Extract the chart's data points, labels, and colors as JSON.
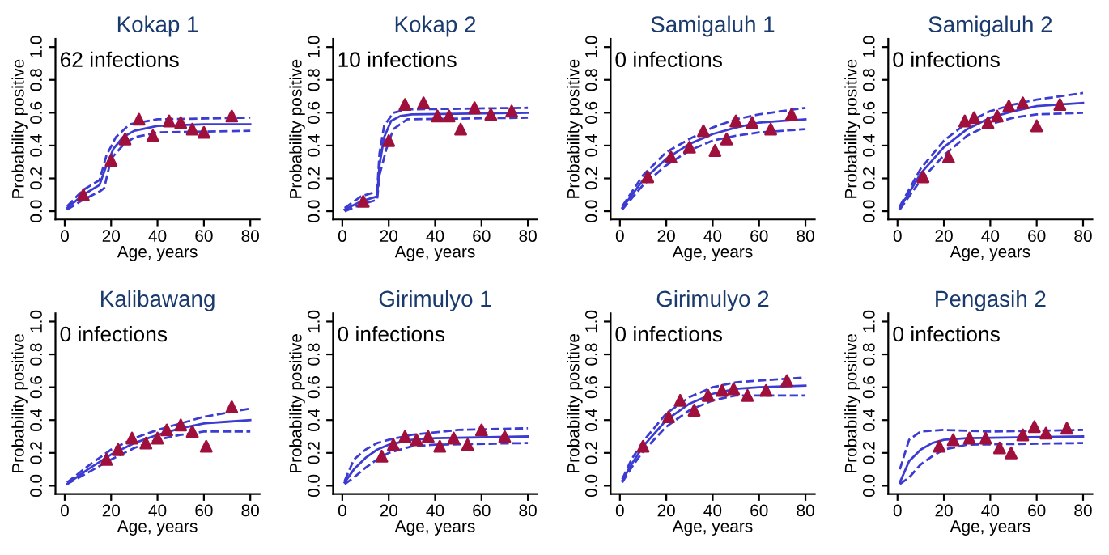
{
  "chart_data": [
    {
      "type": "line",
      "title": "Kokap 1",
      "xlabel": "Age, years",
      "ylabel": "Probability positive",
      "annotations": [
        "62 infections"
      ],
      "xlim": [
        -4,
        84
      ],
      "ylim": [
        -0.05,
        1.05
      ],
      "xticks": [
        0,
        20,
        40,
        60,
        80
      ],
      "yticks": [
        {
          "value": 0,
          "label": "0.0"
        },
        {
          "value": 0.2,
          "label": "0.2"
        },
        {
          "value": 0.4,
          "label": "0.4"
        },
        {
          "value": 0.6,
          "label": "0.6"
        },
        {
          "value": 0.8,
          "label": "0.8"
        },
        {
          "value": 1,
          "label": "1.0"
        }
      ],
      "grid": false,
      "series": [
        {
          "type": "line",
          "line_style": "solid",
          "color": "#3c3cd2",
          "x": [
            1,
            8,
            15,
            18,
            21,
            25,
            30,
            40,
            60,
            80
          ],
          "values": [
            0.02,
            0.1,
            0.16,
            0.28,
            0.38,
            0.45,
            0.49,
            0.52,
            0.53,
            0.53
          ]
        },
        {
          "type": "line",
          "line_style": "dashed",
          "color": "#3c3cd2",
          "x": [
            1,
            8,
            15,
            17,
            20,
            25,
            30,
            40,
            80
          ],
          "values": [
            0.01,
            0.07,
            0.12,
            0.14,
            0.32,
            0.4,
            0.45,
            0.48,
            0.49
          ]
        },
        {
          "type": "line",
          "line_style": "dashed",
          "color": "#3c3cd2",
          "x": [
            1,
            8,
            15,
            18,
            22,
            28,
            40,
            80
          ],
          "values": [
            0.03,
            0.13,
            0.19,
            0.34,
            0.45,
            0.53,
            0.56,
            0.57
          ]
        },
        {
          "type": "scatter",
          "marker": "triangle",
          "color": "#a0103c",
          "x": [
            8,
            20,
            26,
            32,
            38,
            45,
            50,
            55,
            60,
            72
          ],
          "values": [
            0.1,
            0.31,
            0.44,
            0.56,
            0.46,
            0.55,
            0.54,
            0.5,
            0.48,
            0.58
          ]
        }
      ]
    },
    {
      "type": "line",
      "title": "Kokap 2",
      "xlabel": "Age, years",
      "ylabel": "Probability positive",
      "annotations": [
        "10 infections"
      ],
      "xlim": [
        -4,
        84
      ],
      "ylim": [
        -0.05,
        1.05
      ],
      "xticks": [
        0,
        20,
        40,
        60,
        80
      ],
      "yticks": [
        {
          "value": 0,
          "label": "0.0"
        },
        {
          "value": 0.2,
          "label": "0.2"
        },
        {
          "value": 0.4,
          "label": "0.4"
        },
        {
          "value": 0.6,
          "label": "0.6"
        },
        {
          "value": 0.8,
          "label": "0.8"
        },
        {
          "value": 1,
          "label": "1.0"
        }
      ],
      "grid": false,
      "series": [
        {
          "type": "line",
          "line_style": "solid",
          "color": "#3c3cd2",
          "x": [
            1,
            8,
            15,
            16,
            18,
            21,
            25,
            30,
            80
          ],
          "values": [
            0.01,
            0.06,
            0.09,
            0.28,
            0.45,
            0.55,
            0.58,
            0.59,
            0.6
          ]
        },
        {
          "type": "line",
          "line_style": "dashed",
          "color": "#3c3cd2",
          "x": [
            1,
            8,
            15,
            16,
            19,
            22,
            28,
            80
          ],
          "values": [
            0.0,
            0.04,
            0.07,
            0.22,
            0.38,
            0.5,
            0.56,
            0.57
          ]
        },
        {
          "type": "line",
          "line_style": "dashed",
          "color": "#3c3cd2",
          "x": [
            1,
            8,
            15,
            16,
            18,
            22,
            28,
            80
          ],
          "values": [
            0.02,
            0.09,
            0.12,
            0.35,
            0.52,
            0.6,
            0.62,
            0.63
          ]
        },
        {
          "type": "scatter",
          "marker": "triangle",
          "color": "#a0103c",
          "x": [
            9,
            20,
            27,
            35,
            41,
            46,
            51,
            57,
            64,
            73
          ],
          "values": [
            0.06,
            0.43,
            0.65,
            0.66,
            0.58,
            0.58,
            0.5,
            0.63,
            0.59,
            0.61
          ]
        }
      ]
    },
    {
      "type": "line",
      "title": "Samigaluh 1",
      "xlabel": "Age, years",
      "ylabel": "Probability positive",
      "annotations": [
        "0 infections"
      ],
      "xlim": [
        -4,
        84
      ],
      "ylim": [
        -0.05,
        1.05
      ],
      "xticks": [
        0,
        20,
        40,
        60,
        80
      ],
      "yticks": [
        {
          "value": 0,
          "label": "0.0"
        },
        {
          "value": 0.2,
          "label": "0.2"
        },
        {
          "value": 0.4,
          "label": "0.4"
        },
        {
          "value": 0.6,
          "label": "0.6"
        },
        {
          "value": 0.8,
          "label": "0.8"
        },
        {
          "value": 1,
          "label": "1.0"
        }
      ],
      "grid": false,
      "series": [
        {
          "type": "line",
          "line_style": "solid",
          "color": "#3c3cd2",
          "x": [
            1,
            10,
            20,
            30,
            40,
            50,
            60,
            70,
            80
          ],
          "values": [
            0.02,
            0.19,
            0.32,
            0.41,
            0.47,
            0.51,
            0.54,
            0.55,
            0.56
          ]
        },
        {
          "type": "line",
          "line_style": "dashed",
          "color": "#3c3cd2",
          "x": [
            1,
            10,
            20,
            30,
            40,
            50,
            60,
            80
          ],
          "values": [
            0.01,
            0.16,
            0.28,
            0.37,
            0.43,
            0.46,
            0.48,
            0.5
          ]
        },
        {
          "type": "line",
          "line_style": "dashed",
          "color": "#3c3cd2",
          "x": [
            1,
            10,
            20,
            30,
            40,
            50,
            60,
            80
          ],
          "values": [
            0.03,
            0.22,
            0.36,
            0.44,
            0.51,
            0.56,
            0.59,
            0.63
          ]
        },
        {
          "type": "scatter",
          "marker": "triangle",
          "color": "#a0103c",
          "x": [
            12,
            22,
            30,
            36,
            41,
            46,
            50,
            57,
            65,
            74
          ],
          "values": [
            0.21,
            0.33,
            0.39,
            0.49,
            0.37,
            0.44,
            0.55,
            0.54,
            0.5,
            0.59
          ]
        }
      ]
    },
    {
      "type": "line",
      "title": "Samigaluh 2",
      "xlabel": "Age, years",
      "ylabel": "Probability positive",
      "annotations": [
        "0 infections"
      ],
      "xlim": [
        -4,
        84
      ],
      "ylim": [
        -0.05,
        1.05
      ],
      "xticks": [
        0,
        20,
        40,
        60,
        80
      ],
      "yticks": [
        {
          "value": 0,
          "label": "0.0"
        },
        {
          "value": 0.2,
          "label": "0.2"
        },
        {
          "value": 0.4,
          "label": "0.4"
        },
        {
          "value": 0.6,
          "label": "0.6"
        },
        {
          "value": 0.8,
          "label": "0.8"
        },
        {
          "value": 1,
          "label": "1.0"
        }
      ],
      "grid": false,
      "series": [
        {
          "type": "line",
          "line_style": "solid",
          "color": "#3c3cd2",
          "x": [
            1,
            10,
            20,
            30,
            40,
            50,
            60,
            70,
            80
          ],
          "values": [
            0.02,
            0.23,
            0.39,
            0.5,
            0.57,
            0.61,
            0.64,
            0.65,
            0.66
          ]
        },
        {
          "type": "line",
          "line_style": "dashed",
          "color": "#3c3cd2",
          "x": [
            1,
            10,
            20,
            30,
            40,
            50,
            60,
            80
          ],
          "values": [
            0.01,
            0.19,
            0.34,
            0.46,
            0.53,
            0.57,
            0.59,
            0.6
          ]
        },
        {
          "type": "line",
          "line_style": "dashed",
          "color": "#3c3cd2",
          "x": [
            1,
            10,
            20,
            30,
            40,
            50,
            60,
            80
          ],
          "values": [
            0.03,
            0.26,
            0.43,
            0.54,
            0.61,
            0.65,
            0.68,
            0.72
          ]
        },
        {
          "type": "scatter",
          "marker": "triangle",
          "color": "#a0103c",
          "x": [
            11,
            22,
            29,
            33,
            39,
            43,
            48,
            54,
            60,
            70
          ],
          "values": [
            0.21,
            0.33,
            0.55,
            0.57,
            0.54,
            0.58,
            0.64,
            0.66,
            0.52,
            0.65
          ]
        }
      ]
    },
    {
      "type": "line",
      "title": "Kalibawang",
      "xlabel": "Age, years",
      "ylabel": "Probability positive",
      "annotations": [
        "0 infections"
      ],
      "xlim": [
        -4,
        84
      ],
      "ylim": [
        -0.05,
        1.05
      ],
      "xticks": [
        0,
        20,
        40,
        60,
        80
      ],
      "yticks": [
        {
          "value": 0,
          "label": "0.0"
        },
        {
          "value": 0.2,
          "label": "0.2"
        },
        {
          "value": 0.4,
          "label": "0.4"
        },
        {
          "value": 0.6,
          "label": "0.6"
        },
        {
          "value": 0.8,
          "label": "0.8"
        },
        {
          "value": 1,
          "label": "1.0"
        }
      ],
      "grid": false,
      "series": [
        {
          "type": "line",
          "line_style": "solid",
          "color": "#3c3cd2",
          "x": [
            1,
            10,
            20,
            30,
            40,
            50,
            60,
            70,
            80
          ],
          "values": [
            0.01,
            0.1,
            0.19,
            0.26,
            0.31,
            0.35,
            0.38,
            0.39,
            0.4
          ]
        },
        {
          "type": "line",
          "line_style": "dashed",
          "color": "#3c3cd2",
          "x": [
            1,
            10,
            20,
            30,
            40,
            50,
            60,
            80
          ],
          "values": [
            0.01,
            0.08,
            0.16,
            0.23,
            0.28,
            0.31,
            0.33,
            0.33
          ]
        },
        {
          "type": "line",
          "line_style": "dashed",
          "color": "#3c3cd2",
          "x": [
            1,
            10,
            20,
            30,
            40,
            50,
            60,
            80
          ],
          "values": [
            0.02,
            0.12,
            0.22,
            0.29,
            0.34,
            0.38,
            0.42,
            0.47
          ]
        },
        {
          "type": "scatter",
          "marker": "triangle",
          "color": "#a0103c",
          "x": [
            18,
            23,
            29,
            35,
            40,
            44,
            50,
            55,
            61,
            72
          ],
          "values": [
            0.16,
            0.22,
            0.29,
            0.26,
            0.29,
            0.34,
            0.37,
            0.33,
            0.24,
            0.48
          ]
        }
      ]
    },
    {
      "type": "line",
      "title": "Girimulyo 1",
      "xlabel": "Age, years",
      "ylabel": "Probability positive",
      "annotations": [
        "0 infections"
      ],
      "xlim": [
        -4,
        84
      ],
      "ylim": [
        -0.05,
        1.05
      ],
      "xticks": [
        0,
        20,
        40,
        60,
        80
      ],
      "yticks": [
        {
          "value": 0,
          "label": "0.0"
        },
        {
          "value": 0.2,
          "label": "0.2"
        },
        {
          "value": 0.4,
          "label": "0.4"
        },
        {
          "value": 0.6,
          "label": "0.6"
        },
        {
          "value": 0.8,
          "label": "0.8"
        },
        {
          "value": 1,
          "label": "1.0"
        }
      ],
      "grid": false,
      "series": [
        {
          "type": "line",
          "line_style": "solid",
          "color": "#3c3cd2",
          "x": [
            1,
            5,
            10,
            15,
            20,
            30,
            40,
            80
          ],
          "values": [
            0.02,
            0.1,
            0.17,
            0.22,
            0.25,
            0.28,
            0.29,
            0.3
          ]
        },
        {
          "type": "line",
          "line_style": "dashed",
          "color": "#3c3cd2",
          "x": [
            1,
            5,
            10,
            15,
            20,
            30,
            40,
            80
          ],
          "values": [
            0.01,
            0.05,
            0.11,
            0.16,
            0.2,
            0.24,
            0.25,
            0.26
          ]
        },
        {
          "type": "line",
          "line_style": "dashed",
          "color": "#3c3cd2",
          "x": [
            1,
            5,
            10,
            15,
            20,
            30,
            50,
            80
          ],
          "values": [
            0.03,
            0.16,
            0.22,
            0.26,
            0.28,
            0.31,
            0.34,
            0.35
          ]
        },
        {
          "type": "scatter",
          "marker": "triangle",
          "color": "#a0103c",
          "x": [
            17,
            22,
            27,
            32,
            37,
            42,
            48,
            54,
            60,
            70
          ],
          "values": [
            0.18,
            0.25,
            0.3,
            0.28,
            0.3,
            0.24,
            0.29,
            0.25,
            0.34,
            0.3
          ]
        }
      ]
    },
    {
      "type": "line",
      "title": "Girimulyo 2",
      "xlabel": "Age, years",
      "ylabel": "Probability positive",
      "annotations": [
        "0 infections"
      ],
      "xlim": [
        -4,
        84
      ],
      "ylim": [
        -0.05,
        1.05
      ],
      "xticks": [
        0,
        20,
        40,
        60,
        80
      ],
      "yticks": [
        {
          "value": 0,
          "label": "0.0"
        },
        {
          "value": 0.2,
          "label": "0.2"
        },
        {
          "value": 0.4,
          "label": "0.4"
        },
        {
          "value": 0.6,
          "label": "0.6"
        },
        {
          "value": 0.8,
          "label": "0.8"
        },
        {
          "value": 1,
          "label": "1.0"
        }
      ],
      "grid": false,
      "series": [
        {
          "type": "line",
          "line_style": "solid",
          "color": "#3c3cd2",
          "x": [
            1,
            5,
            10,
            20,
            30,
            40,
            50,
            60,
            80
          ],
          "values": [
            0.03,
            0.13,
            0.24,
            0.4,
            0.5,
            0.56,
            0.59,
            0.6,
            0.61
          ]
        },
        {
          "type": "line",
          "line_style": "dashed",
          "color": "#3c3cd2",
          "x": [
            1,
            5,
            10,
            20,
            30,
            40,
            50,
            80
          ],
          "values": [
            0.02,
            0.11,
            0.21,
            0.36,
            0.46,
            0.52,
            0.55,
            0.55
          ]
        },
        {
          "type": "line",
          "line_style": "dashed",
          "color": "#3c3cd2",
          "x": [
            1,
            5,
            10,
            20,
            30,
            40,
            50,
            80
          ],
          "values": [
            0.04,
            0.16,
            0.27,
            0.44,
            0.54,
            0.6,
            0.63,
            0.66
          ]
        },
        {
          "type": "scatter",
          "marker": "triangle",
          "color": "#a0103c",
          "x": [
            10,
            21,
            26,
            32,
            38,
            44,
            49,
            55,
            63,
            72
          ],
          "values": [
            0.24,
            0.42,
            0.52,
            0.46,
            0.55,
            0.58,
            0.59,
            0.55,
            0.58,
            0.64
          ]
        }
      ]
    },
    {
      "type": "line",
      "title": "Pengasih 2",
      "xlabel": "Age, years",
      "ylabel": "Probability positive",
      "annotations": [
        "0 infections"
      ],
      "xlim": [
        -4,
        84
      ],
      "ylim": [
        -0.05,
        1.05
      ],
      "xticks": [
        0,
        20,
        40,
        60,
        80
      ],
      "yticks": [
        {
          "value": 0,
          "label": "0.0"
        },
        {
          "value": 0.2,
          "label": "0.2"
        },
        {
          "value": 0.4,
          "label": "0.4"
        },
        {
          "value": 0.6,
          "label": "0.6"
        },
        {
          "value": 0.8,
          "label": "0.8"
        },
        {
          "value": 1,
          "label": "1.0"
        }
      ],
      "grid": false,
      "series": [
        {
          "type": "line",
          "line_style": "solid",
          "color": "#3c3cd2",
          "x": [
            1,
            5,
            10,
            15,
            20,
            30,
            80
          ],
          "values": [
            0.02,
            0.15,
            0.22,
            0.26,
            0.28,
            0.29,
            0.3
          ]
        },
        {
          "type": "line",
          "line_style": "dashed",
          "color": "#3c3cd2",
          "x": [
            1,
            5,
            10,
            15,
            20,
            30,
            80
          ],
          "values": [
            0.01,
            0.05,
            0.13,
            0.18,
            0.22,
            0.25,
            0.26
          ]
        },
        {
          "type": "line",
          "line_style": "dashed",
          "color": "#3c3cd2",
          "x": [
            1,
            5,
            10,
            20,
            40,
            80
          ],
          "values": [
            0.1,
            0.28,
            0.33,
            0.34,
            0.33,
            0.34
          ]
        },
        {
          "type": "scatter",
          "marker": "triangle",
          "color": "#a0103c",
          "x": [
            18,
            24,
            31,
            38,
            44,
            49,
            54,
            59,
            64,
            73
          ],
          "values": [
            0.24,
            0.28,
            0.29,
            0.29,
            0.23,
            0.2,
            0.31,
            0.36,
            0.32,
            0.35
          ]
        }
      ]
    }
  ]
}
